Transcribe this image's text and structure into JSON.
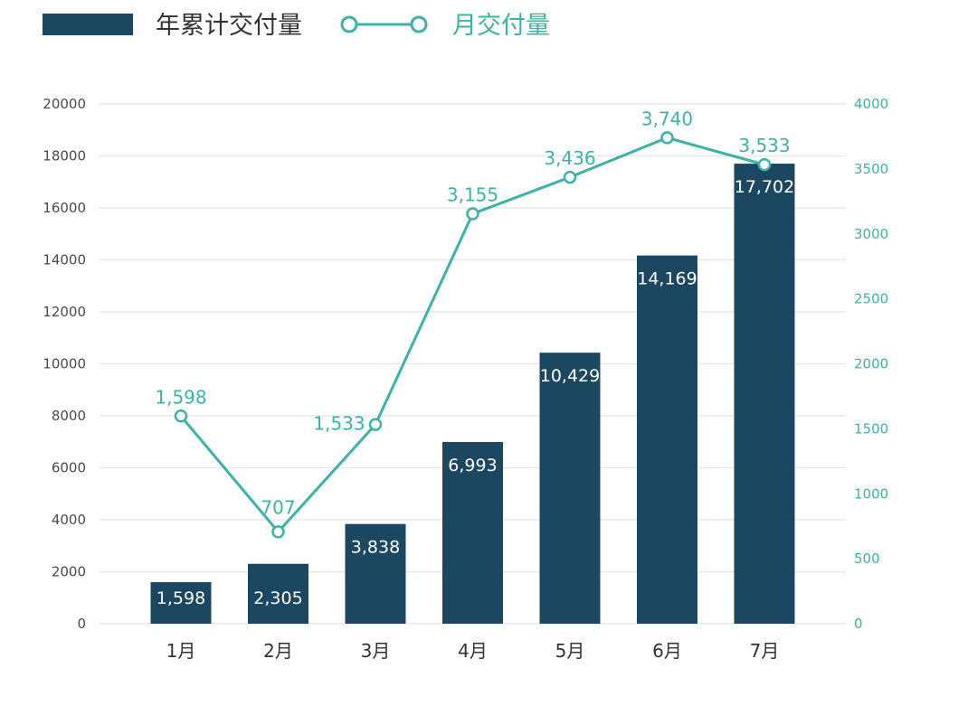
{
  "chart_data": {
    "type": "bar",
    "categories": [
      "1月",
      "2月",
      "3月",
      "4月",
      "5月",
      "6月",
      "7月"
    ],
    "series": [
      {
        "name": "年累计交付量",
        "type": "bar",
        "axis": "left",
        "values": [
          1598,
          2305,
          3838,
          6993,
          10429,
          14169,
          17702
        ],
        "labels": [
          "1,598",
          "2,305",
          "3,838",
          "6,993",
          "10,429",
          "14,169",
          "17,702"
        ]
      },
      {
        "name": "月交付量",
        "type": "line",
        "axis": "right",
        "values": [
          1598,
          707,
          1533,
          3155,
          3436,
          3740,
          3533
        ],
        "labels": [
          "1,598",
          "707",
          "1,533",
          "3,155",
          "3,436",
          "3,740",
          "3,533"
        ]
      }
    ],
    "left_axis": {
      "ylim": [
        0,
        20000
      ],
      "ticks": [
        "0",
        "2000",
        "4000",
        "6000",
        "8000",
        "10000",
        "12000",
        "14000",
        "16000",
        "18000",
        "20000"
      ]
    },
    "right_axis": {
      "ylim": [
        0,
        4000
      ],
      "ticks": [
        "0",
        "500",
        "1000",
        "1500",
        "2000",
        "2500",
        "3000",
        "3500",
        "4000"
      ]
    },
    "legend_position": "top-left",
    "grid": true
  },
  "colors": {
    "bar": "#1b4860",
    "line": "#3bb3a7",
    "grid": "#e6e9ec"
  }
}
